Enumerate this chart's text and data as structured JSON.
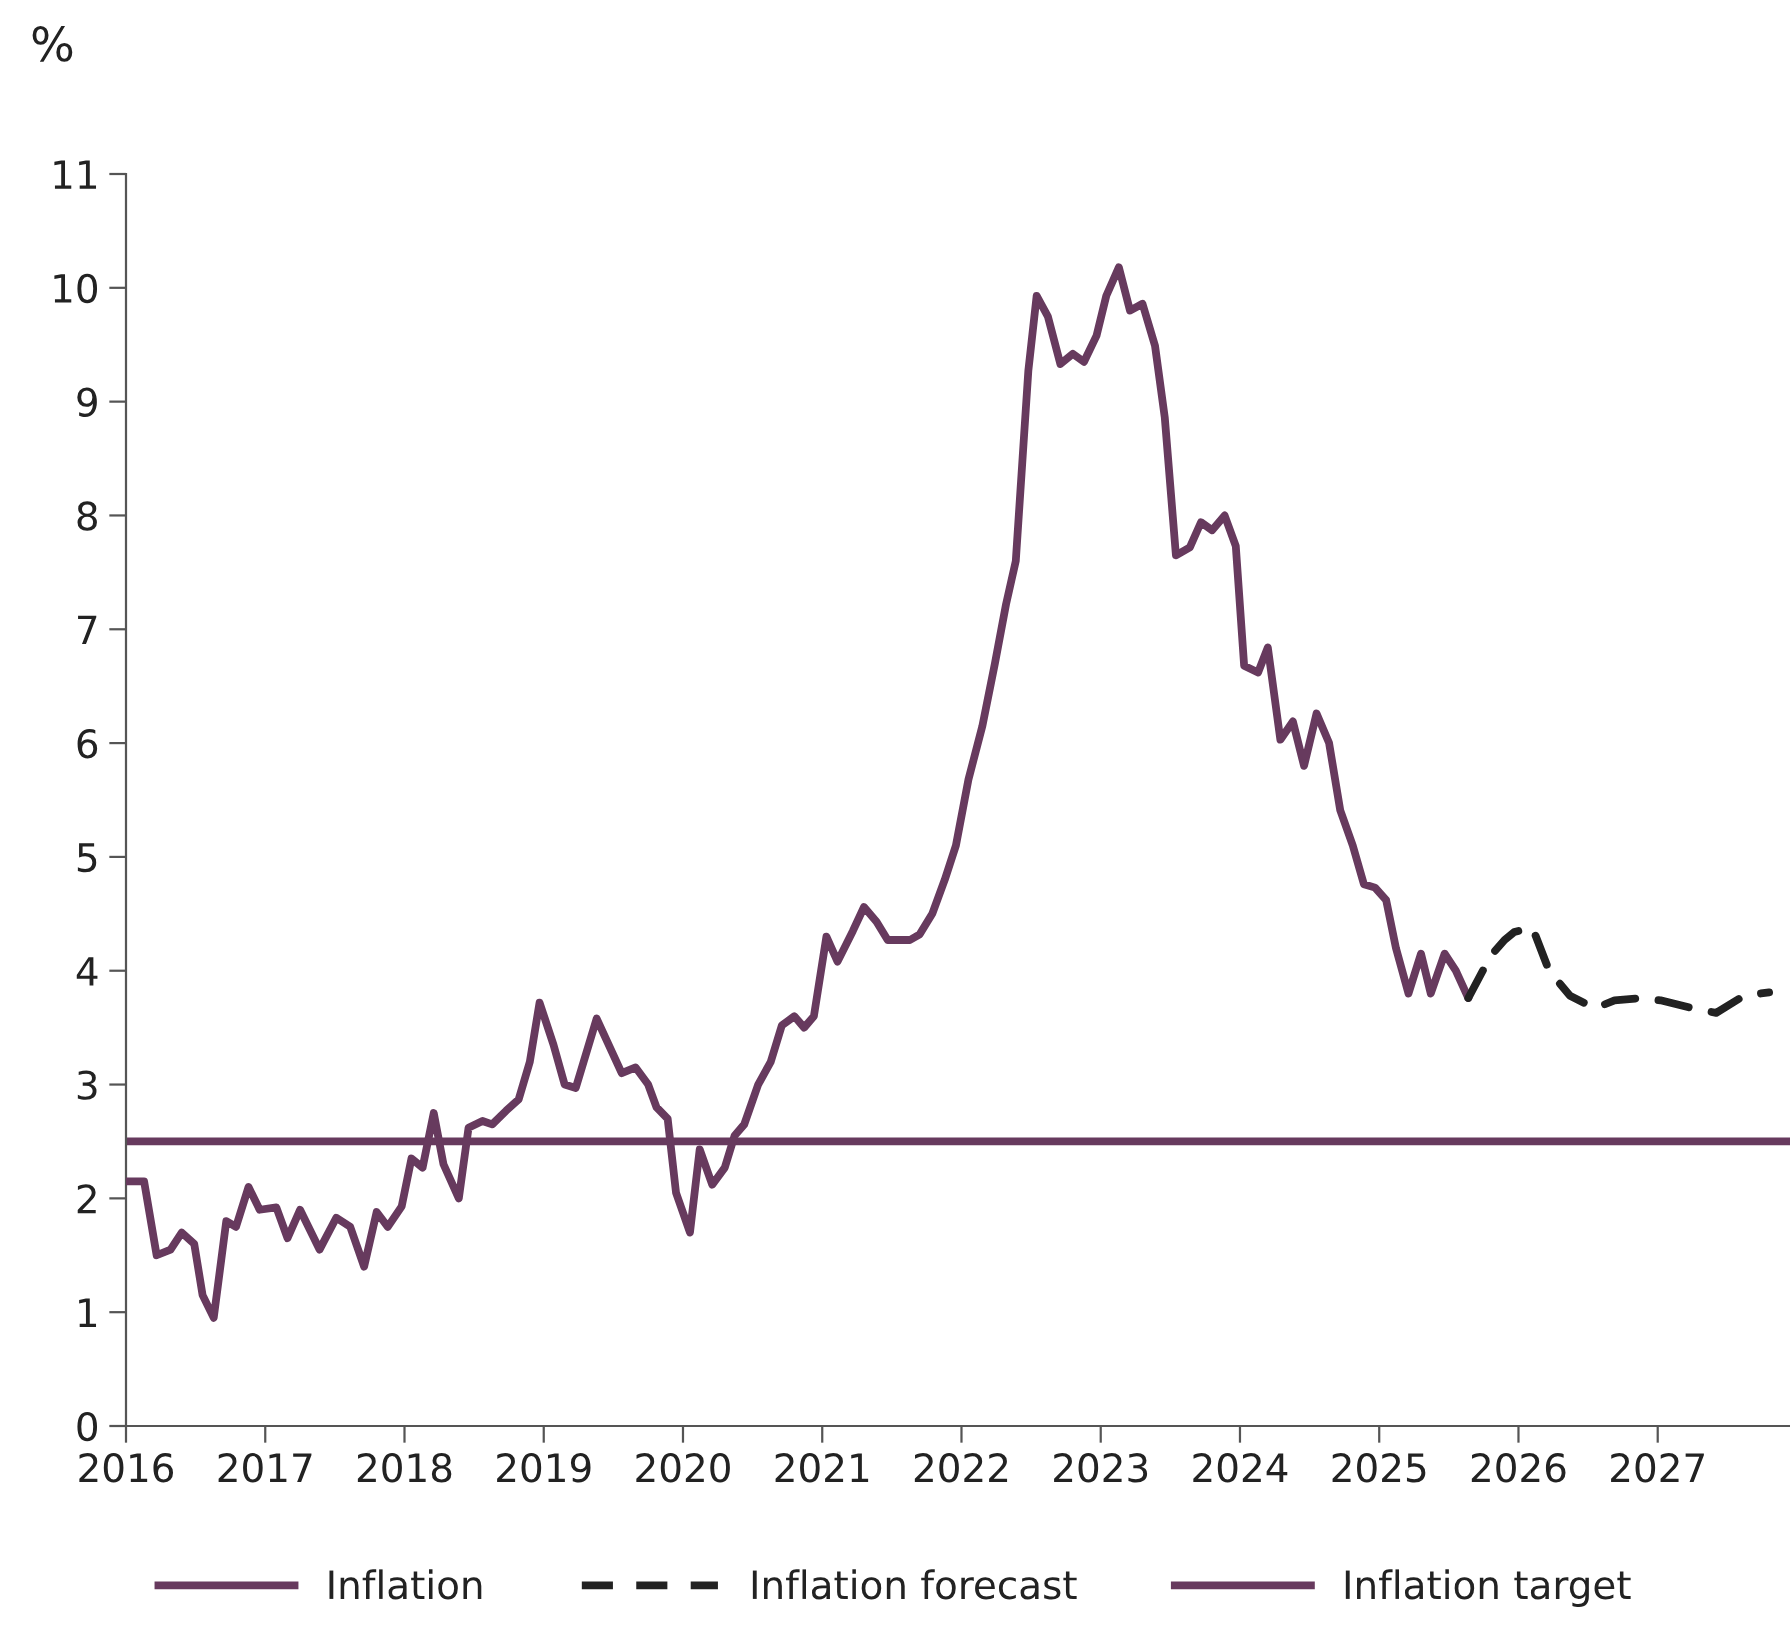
{
  "chart_data": {
    "type": "line",
    "ylabel": "%",
    "xlim": [
      2016,
      2027.95
    ],
    "xticks": [
      2016,
      2017,
      2018,
      2019,
      2020,
      2021,
      2022,
      2023,
      2024,
      2025,
      2026,
      2027
    ],
    "ylim": [
      0,
      11
    ],
    "yticks": [
      0,
      1,
      2,
      3,
      4,
      5,
      6,
      7,
      8,
      9,
      10,
      11
    ],
    "grid": false,
    "legend": "bottom",
    "marker": "none",
    "series": [
      {
        "name": "Inflation",
        "color": "#673a5e",
        "line_style": "solid",
        "x": [
          2016.0,
          2016.13,
          2016.22,
          2016.32,
          2016.4,
          2016.49,
          2016.55,
          2016.63,
          2016.72,
          2016.79,
          2016.88,
          2016.96,
          2017.08,
          2017.16,
          2017.25,
          2017.39,
          2017.51,
          2017.61,
          2017.71,
          2017.8,
          2017.88,
          2017.98,
          2018.05,
          2018.13,
          2018.21,
          2018.28,
          2018.39,
          2018.46,
          2018.56,
          2018.63,
          2018.73,
          2018.82,
          2018.9,
          2018.97,
          2019.07,
          2019.15,
          2019.23,
          2019.38,
          2019.56,
          2019.66,
          2019.75,
          2019.81,
          2019.89,
          2019.95,
          2020.05,
          2020.12,
          2020.21,
          2020.3,
          2020.37,
          2020.44,
          2020.54,
          2020.63,
          2020.71,
          2020.8,
          2020.87,
          2020.94,
          2021.03,
          2021.11,
          2021.22,
          2021.3,
          2021.39,
          2021.47,
          2021.63,
          2021.7,
          2021.79,
          2021.88,
          2021.96,
          2022.05,
          2022.15,
          2022.24,
          2022.32,
          2022.39,
          2022.48,
          2022.54,
          2022.62,
          2022.71,
          2022.8,
          2022.88,
          2022.97,
          2023.04,
          2023.13,
          2023.21,
          2023.3,
          2023.39,
          2023.46,
          2023.54,
          2023.64,
          2023.72,
          2023.8,
          2023.89,
          2023.97,
          2024.03,
          2024.13,
          2024.2,
          2024.29,
          2024.38,
          2024.46,
          2024.55,
          2024.64,
          2024.72,
          2024.81,
          2024.89,
          2024.97,
          2025.05,
          2025.12,
          2025.21,
          2025.3,
          2025.37,
          2025.47,
          2025.55,
          2025.64
        ],
        "values": [
          2.15,
          2.15,
          1.5,
          1.55,
          1.7,
          1.6,
          1.15,
          0.95,
          1.8,
          1.75,
          2.1,
          1.9,
          1.92,
          1.65,
          1.9,
          1.55,
          1.83,
          1.75,
          1.4,
          1.88,
          1.75,
          1.93,
          2.35,
          2.27,
          2.75,
          2.3,
          2.0,
          2.62,
          2.68,
          2.65,
          2.77,
          2.87,
          3.2,
          3.72,
          3.35,
          3.0,
          2.97,
          3.58,
          3.1,
          3.15,
          3.0,
          2.8,
          2.7,
          2.05,
          1.7,
          2.43,
          2.12,
          2.27,
          2.55,
          2.65,
          3.0,
          3.2,
          3.52,
          3.6,
          3.5,
          3.6,
          4.3,
          4.08,
          4.35,
          4.56,
          4.43,
          4.27,
          4.27,
          4.32,
          4.5,
          4.8,
          5.1,
          5.68,
          6.15,
          6.7,
          7.22,
          7.6,
          9.27,
          9.93,
          9.75,
          9.33,
          9.42,
          9.35,
          9.58,
          9.93,
          10.18,
          9.8,
          9.86,
          9.49,
          8.86,
          7.65,
          7.72,
          7.94,
          7.87,
          8.0,
          7.73,
          6.68,
          6.62,
          6.84,
          6.03,
          6.19,
          5.8,
          6.26,
          6.0,
          5.41,
          5.1,
          4.76,
          4.73,
          4.62,
          4.2,
          3.8,
          4.15,
          3.8,
          4.15,
          4.0,
          3.76
        ]
      },
      {
        "name": "Inflation forecast",
        "color": "#222222",
        "line_style": "dashed",
        "x": [
          2025.64,
          2025.8,
          2025.9,
          2025.97,
          2026.1,
          2026.22,
          2026.37,
          2026.55,
          2026.69,
          2026.88,
          2027.02,
          2027.25,
          2027.42,
          2027.62,
          2027.8
        ],
        "values": [
          3.76,
          4.13,
          4.27,
          4.34,
          4.38,
          4.0,
          3.78,
          3.67,
          3.74,
          3.76,
          3.74,
          3.67,
          3.63,
          3.78,
          3.81
        ]
      }
    ],
    "ref_lines": [
      {
        "axis": "y",
        "value": 2.5,
        "label": "Inflation target",
        "color": "#673a5e",
        "line_style": "solid"
      }
    ]
  }
}
